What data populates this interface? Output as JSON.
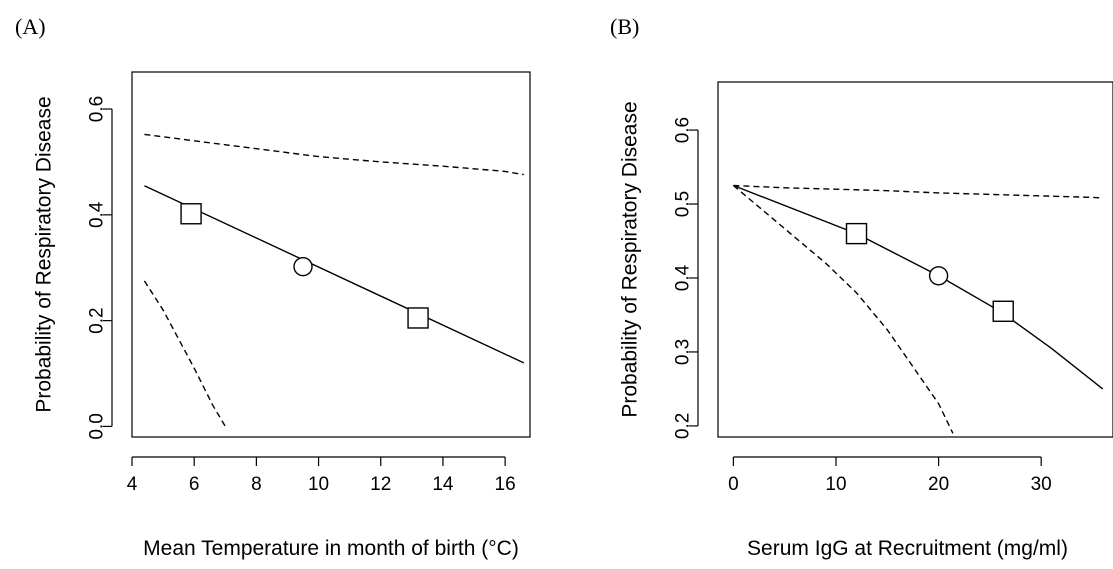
{
  "panels": [
    {
      "label": "(A)"
    },
    {
      "label": "(B)"
    }
  ],
  "chart_data": [
    {
      "type": "line",
      "panel": "(A)",
      "xlabel": "Mean Temperature in month of birth (°C)",
      "ylabel": "Probability of Respiratory Disease",
      "xlim": [
        4,
        16.8
      ],
      "ylim": [
        -0.02,
        0.67
      ],
      "xticks": [
        4,
        6,
        8,
        10,
        12,
        14,
        16
      ],
      "yticks": [
        0.0,
        0.2,
        0.4,
        0.6
      ],
      "ytick_labels": [
        "0.0",
        "0.2",
        "0.4",
        "0.6"
      ],
      "series": [
        {
          "style": "solid",
          "x": [
            4.4,
            16.6
          ],
          "y": [
            0.455,
            0.12
          ]
        },
        {
          "style": "dashed",
          "x": [
            4.4,
            6,
            8,
            10,
            12,
            14,
            16,
            16.6
          ],
          "y": [
            0.552,
            0.54,
            0.525,
            0.51,
            0.5,
            0.492,
            0.482,
            0.476
          ]
        },
        {
          "style": "dashed",
          "x": [
            4.4,
            5.0,
            6.0,
            6.6,
            7.0
          ],
          "y": [
            0.275,
            0.22,
            0.11,
            0.04,
            0.0
          ]
        }
      ],
      "markers": [
        {
          "shape": "square",
          "x": 5.9,
          "y": 0.402
        },
        {
          "shape": "circle",
          "x": 9.5,
          "y": 0.302
        },
        {
          "shape": "square",
          "x": 13.2,
          "y": 0.205
        }
      ]
    },
    {
      "type": "line",
      "panel": "(B)",
      "xlabel": "Serum IgG at Recruitment (mg/ml)",
      "ylabel": "Probability of Respiratory Disease",
      "xlim": [
        -1.5,
        37
      ],
      "ylim": [
        0.185,
        0.665
      ],
      "xticks": [
        0,
        10,
        20,
        30
      ],
      "yticks": [
        0.2,
        0.3,
        0.4,
        0.5,
        0.6
      ],
      "ytick_labels": [
        "0.2",
        "0.3",
        "0.4",
        "0.5",
        "0.6"
      ],
      "series": [
        {
          "style": "solid",
          "x": [
            0,
            12,
            20,
            26,
            31,
            36
          ],
          "y": [
            0.525,
            0.46,
            0.403,
            0.355,
            0.305,
            0.25
          ]
        },
        {
          "style": "dashed",
          "x": [
            0,
            5,
            10,
            15,
            20,
            25,
            30,
            35,
            36
          ],
          "y": [
            0.525,
            0.522,
            0.52,
            0.518,
            0.515,
            0.513,
            0.511,
            0.509,
            0.508
          ]
        },
        {
          "style": "dashed",
          "x": [
            0,
            3,
            6,
            9,
            12,
            15,
            18,
            20,
            21.4
          ],
          "y": [
            0.525,
            0.49,
            0.455,
            0.42,
            0.38,
            0.33,
            0.27,
            0.23,
            0.19
          ]
        }
      ],
      "markers": [
        {
          "shape": "square",
          "x": 12,
          "y": 0.46
        },
        {
          "shape": "circle",
          "x": 20,
          "y": 0.403
        },
        {
          "shape": "square",
          "x": 26.3,
          "y": 0.355
        }
      ]
    }
  ]
}
